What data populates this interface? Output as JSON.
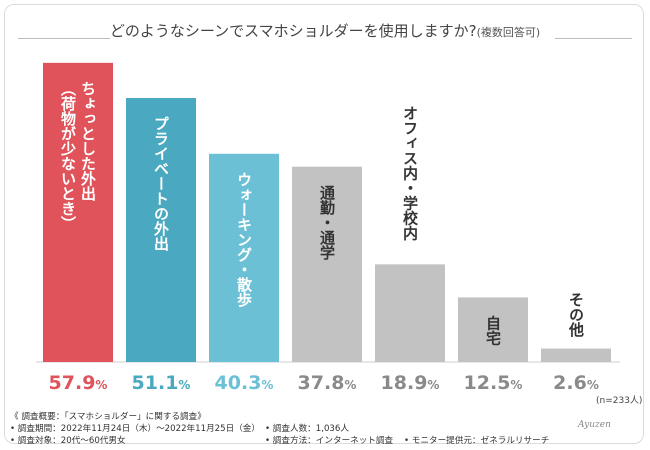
{
  "chart_data": {
    "type": "bar",
    "title": "どのようなシーンでスマホショルダーを使用しますか?",
    "subtitle": "(複数回答可)",
    "categories": [
      "ちょっとした外出（荷物が少ないとき）",
      "プライベートの外出",
      "ウォーキング・散歩",
      "通勤・通学",
      "オフィス内・学校内",
      "自宅",
      "その他"
    ],
    "label_lines": [
      [
        "ちょっとした外出",
        "（荷物が少ないとき）"
      ],
      [
        "プライベートの外出"
      ],
      [
        "ウォーキング・散歩"
      ],
      [
        "通勤・通学"
      ],
      [
        "オフィス内・学校内"
      ],
      [
        "自宅"
      ],
      [
        "その他"
      ]
    ],
    "values": [
      57.9,
      51.1,
      40.3,
      37.8,
      18.9,
      12.5,
      2.6
    ],
    "value_suffix": "%",
    "ylim": [
      0,
      60
    ],
    "grid": false,
    "note": "(n=233人)"
  },
  "colors": {
    "bars": [
      "#e0535a",
      "#4aa9c0",
      "#6cc0d5",
      "#c2c2c2",
      "#c2c2c2",
      "#c2c2c2",
      "#c2c2c2"
    ],
    "labels_on_bar": [
      "#ffffff",
      "#ffffff",
      "#ffffff",
      "#333333",
      "#333333",
      "#333333",
      "#333333"
    ],
    "values": [
      "#e0535a",
      "#4aa9c0",
      "#6cc0d5",
      "#8a8a8a",
      "#8a8a8a",
      "#8a8a8a",
      "#8a8a8a"
    ]
  },
  "footer": {
    "heading": "《 調査概要：「スマホショルダー」に関する調査》",
    "period": "• 調査期間：2022年11月24日（木）～2022年11月25日（金）",
    "respondents": "• 調査人数：1,036人",
    "target": "• 調査対象：20代～60代男女",
    "method": "• 調査方法：インターネット調査",
    "monitor": "• モニター提供元：ゼネラルリサーチ"
  },
  "signature": "Ayuzen"
}
